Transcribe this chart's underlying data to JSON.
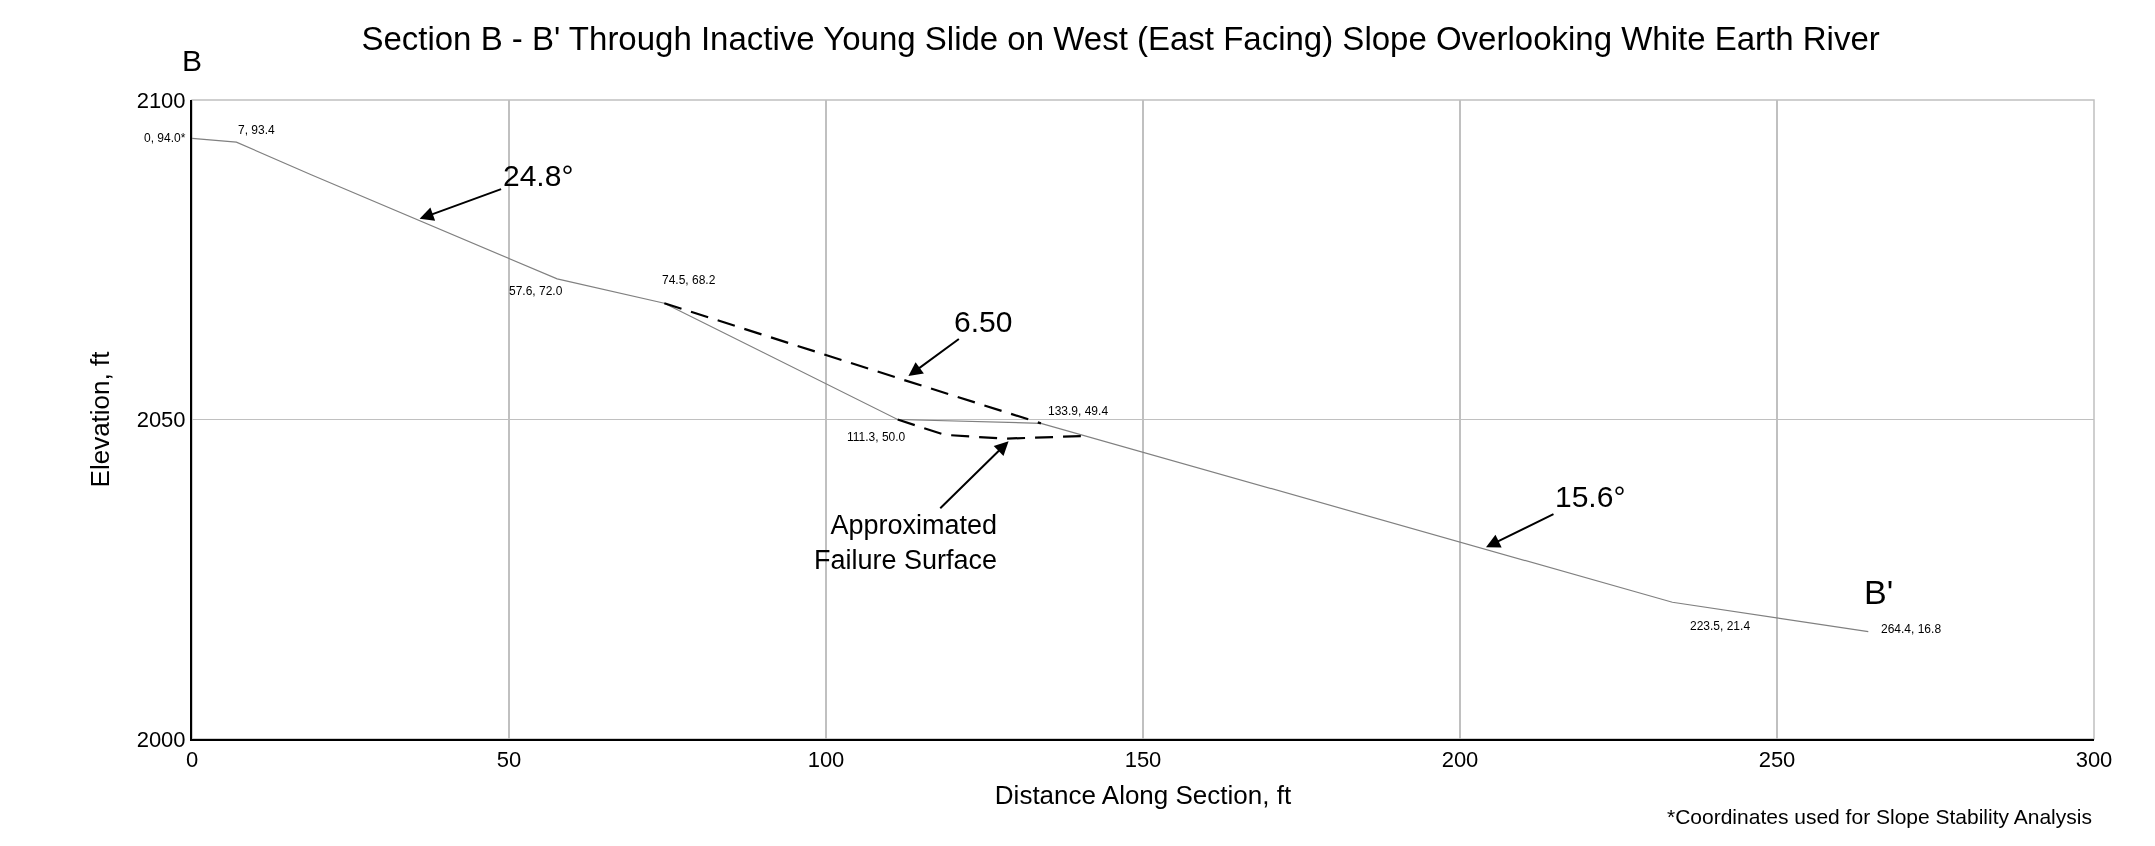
{
  "chart_data": {
    "type": "line",
    "title": "Section B - B' Through Inactive Young Slide on West (East Facing) Slope Overlooking White Earth River",
    "xlabel": "Distance Along Section, ft",
    "ylabel": "Elevation, ft",
    "series": [
      {
        "color": "#808080",
        "line_style": "solid",
        "x": [
          0,
          7,
          18.8,
          57.6,
          74.5,
          111.3,
          133.9,
          233.5,
          264.4
        ],
        "values": [
          2094.0,
          2093.4,
          2088.3,
          2072.0,
          2068.2,
          2050.0,
          2049.4,
          2021.4,
          2016.8
        ]
      },
      {
        "color": "#000000",
        "line_style": "dashed",
        "x": [
          74.5,
          111.3,
          133.9
        ],
        "values": [
          2068.2,
          2056.5,
          2049.4
        ]
      },
      {
        "color": "#000000",
        "line_style": "dashed",
        "x": [
          111.3,
          118.7,
          128.2,
          140.2
        ],
        "values": [
          2050.0,
          2047.6,
          2047.0,
          2047.4
        ]
      }
    ],
    "marker": "none",
    "xlim": [
      0,
      300
    ],
    "xticks": [
      0,
      50,
      100,
      150,
      200,
      250,
      300
    ],
    "ylim": [
      2000,
      2100
    ],
    "yticks": [
      2000,
      2050,
      2100
    ],
    "grid": true,
    "annotations": [
      {
        "text": "B",
        "x": 0,
        "y": 2094.0
      },
      {
        "text": "0, 94.0*",
        "x": 0,
        "y": 2094.0
      },
      {
        "text": "7, 93.4",
        "x": 7,
        "y": 2093.4
      },
      {
        "text": "57.6, 72.0",
        "x": 57.6,
        "y": 2072.0
      },
      {
        "text": "74.5, 68.2",
        "x": 74.5,
        "y": 2068.2
      },
      {
        "text": "111.3, 50.0",
        "x": 111.3,
        "y": 2050.0
      },
      {
        "text": "133.9, 49.4",
        "x": 133.9,
        "y": 2049.4
      },
      {
        "text": "223.5, 21.4",
        "x": 233.5,
        "y": 2021.4
      },
      {
        "text": "264.4, 16.8",
        "x": 264.4,
        "y": 2016.8
      },
      {
        "text": "B'",
        "x": 264.4,
        "y": 2016.8
      },
      {
        "text": "24.8°",
        "x": 35.9,
        "y": 2081.4
      },
      {
        "text": "15.6°",
        "x": 204.1,
        "y": 2030.0
      },
      {
        "text": "6.50",
        "x": 113.0,
        "y": 2056.8
      },
      {
        "text": "Approximated\nFailure Surface",
        "x": 128.8,
        "y": 2046.6
      },
      "*Coordinates used for Slope Stability Analysis"
    ]
  }
}
